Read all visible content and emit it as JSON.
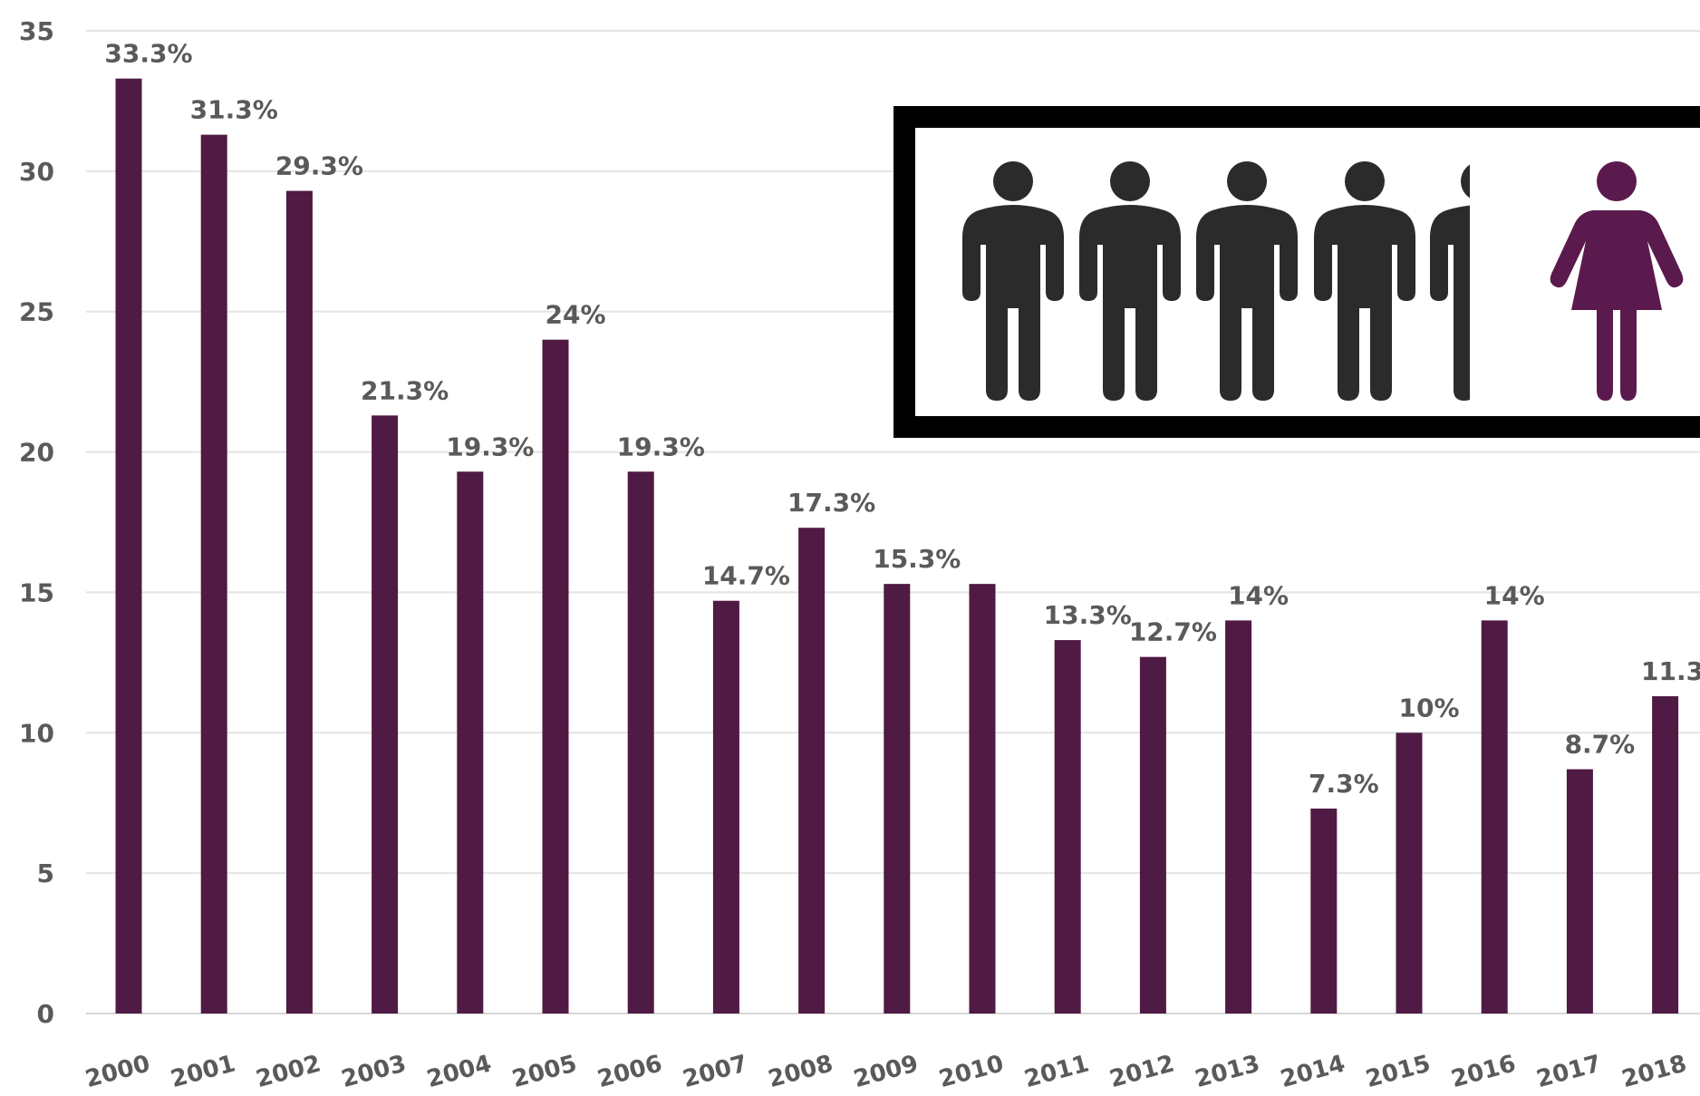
{
  "chart_data": {
    "type": "bar",
    "categories": [
      "2000",
      "2001",
      "2002",
      "2003",
      "2004",
      "2005",
      "2006",
      "2007",
      "2008",
      "2009",
      "2010",
      "2011",
      "2012",
      "2013",
      "2014",
      "2015",
      "2016",
      "2017",
      "2018"
    ],
    "values": [
      33.3,
      31.3,
      29.3,
      21.3,
      19.3,
      24,
      19.3,
      14.7,
      17.3,
      15.3,
      15.3,
      13.3,
      12.7,
      14,
      7.3,
      10,
      14,
      8.7,
      11.3
    ],
    "data_labels": [
      "33.3%",
      "31.3%",
      "29.3%",
      "21.3%",
      "19.3%",
      "24%",
      "19.3%",
      "14.7%",
      "17.3%",
      "15.3%",
      "",
      "13.3%",
      "12.7%",
      "14%",
      "7.3%",
      "10%",
      "14%",
      "8.7%",
      "11.3%"
    ],
    "yticks": [
      "0",
      "5",
      "10",
      "15",
      "20",
      "25",
      "30",
      "35"
    ],
    "ylim": [
      0,
      35
    ],
    "grid": true,
    "bar_color": "#4f1a44",
    "title": "",
    "xlabel": "",
    "ylabel": ""
  },
  "inset": {
    "icons": [
      "man-icon",
      "man-icon",
      "man-icon",
      "man-icon",
      "partial-man-icon",
      "woman-icon"
    ],
    "man_color": "#2b2b2b",
    "woman_color": "#5a1a4d",
    "border_color": "#000000"
  }
}
